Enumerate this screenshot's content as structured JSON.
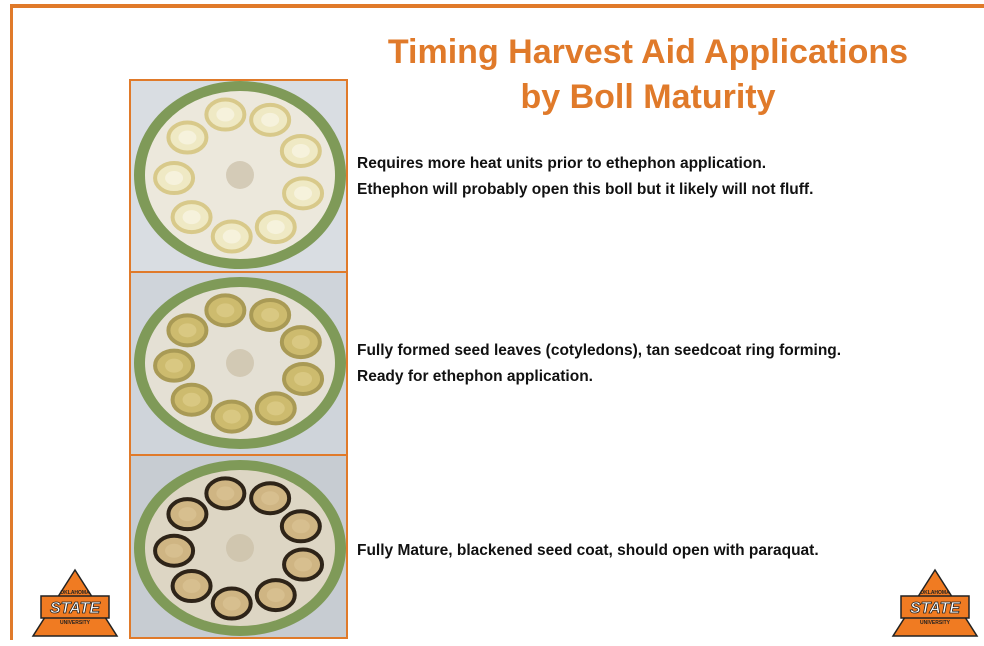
{
  "header": {
    "title_line1": "Timing Harvest Aid Applications",
    "title_line2": "by Boll Maturity"
  },
  "rows": [
    {
      "caption_line1": "Requires more heat units prior to ethephon application.",
      "caption_line2": "Ethephon will  probably open this boll but it likely will  not fluff."
    },
    {
      "caption_line1": "Fully  formed seed leaves (cotyledons), tan seedcoat ring forming.",
      "caption_line2": "Ready for ethephon application."
    },
    {
      "caption_line1": "Fully  Mature, blackened seed coat, should open with paraquat."
    }
  ],
  "logo": {
    "top": "OKLAHOMA",
    "main": "STATE",
    "bottom": "UNIVERSITY"
  }
}
